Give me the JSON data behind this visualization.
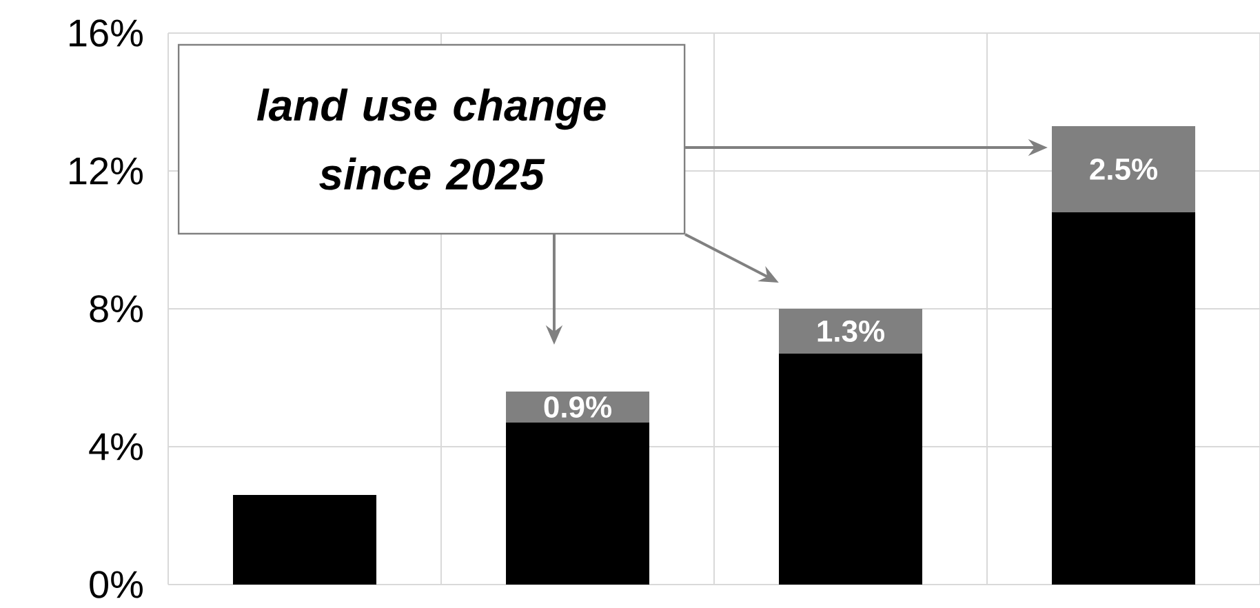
{
  "chart_data": {
    "type": "bar",
    "stacked": true,
    "categories": [
      null,
      null,
      null,
      null
    ],
    "series": [
      {
        "color": "#000000",
        "values": [
          2.6,
          4.7,
          6.7,
          10.8
        ]
      },
      {
        "color": "#808080",
        "values": [
          null,
          0.9,
          1.3,
          2.5
        ],
        "value_labels": [
          null,
          "0.9%",
          "1.3%",
          "2.5%"
        ]
      }
    ],
    "ylim": [
      0,
      16
    ],
    "yticks": [
      {
        "value": 0,
        "label": "0%"
      },
      {
        "value": 4,
        "label": "4%"
      },
      {
        "value": 8,
        "label": "8%"
      },
      {
        "value": 12,
        "label": "12%"
      },
      {
        "value": 16,
        "label": "16%"
      }
    ],
    "grid": true,
    "annotations": [
      "land use change since 2025"
    ]
  }
}
